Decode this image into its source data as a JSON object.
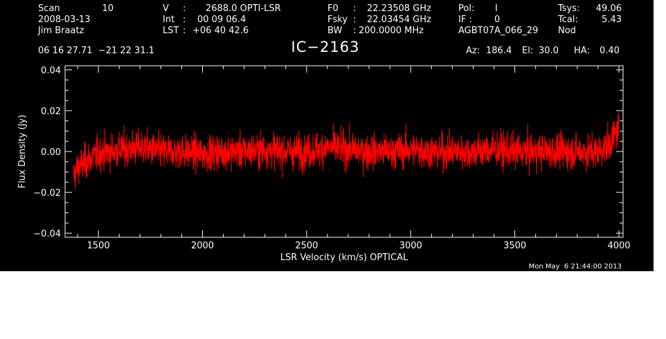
{
  "header": {
    "scan_label": "Scan",
    "scan_value": "10",
    "date": "2008-03-13",
    "observer": "Jim Braatz",
    "v_label": "V",
    "v_value": "2688.0 OPTI-LSR",
    "int_label": "Int",
    "int_value": "00 09 06.4",
    "lst_label": "LST",
    "lst_value": "+06 40 42.6",
    "f0_label": "F0",
    "f0_value": "22.23508 GHz",
    "fsky_label": "Fsky",
    "fsky_value": "22.03454 GHz",
    "bw_label": "BW",
    "bw_value": "200.0000 MHz",
    "pol_label": "Pol:",
    "pol_value": "I",
    "if_label": "IF :",
    "if_value": "0",
    "project": "AGBT07A_066_29",
    "tsys_label": "Tsys:",
    "tsys_value": "49.06",
    "tcal_label": "Tcal:",
    "tcal_value": "5.43",
    "mode": "Nod",
    "coords": "06 16 27.71  −21 22 31.1",
    "source": "IC−2163",
    "az_label": "Az:",
    "az_value": "186.4",
    "el_label": "El:",
    "el_value": "30.0",
    "ha_label": "HA:",
    "ha_value": "0.40",
    "timestamp": "Mon May  6 21:44:00 2013"
  },
  "colors": {
    "background": "#000000",
    "axes": "#ffffff",
    "trace": "#ff0000"
  },
  "chart_data": {
    "type": "line",
    "title": "IC−2163",
    "xlabel": "LSR Velocity (km/s) OPTICAL",
    "ylabel": "Flux Density (Jy)",
    "xlim": [
      1340,
      4020
    ],
    "ylim": [
      -0.042,
      0.042
    ],
    "xticks": [
      1500,
      2000,
      2500,
      3000,
      3500,
      4000
    ],
    "xtick_labels": [
      "1500",
      "2000",
      "2500",
      "3000",
      "3500",
      "4000"
    ],
    "yticks": [
      -0.04,
      -0.02,
      0.0,
      0.02,
      0.04
    ],
    "ytick_labels": [
      "−0.04",
      "−0.02",
      "0.00",
      "0.02",
      "0.04"
    ],
    "grid": false,
    "series": [
      {
        "color": "#ff0000",
        "x_range": [
          1380,
          4000
        ],
        "noise_rms_jy": 0.006,
        "x": [
          1380,
          1400,
          1450,
          1500,
          1600,
          1700,
          1800,
          1900,
          2000,
          2100,
          2200,
          2300,
          2400,
          2500,
          2600,
          2700,
          2800,
          2900,
          3000,
          3100,
          3200,
          3300,
          3400,
          3500,
          3600,
          3700,
          3800,
          3900,
          3950,
          3980,
          4000
        ],
        "y": [
          -0.012,
          -0.008,
          -0.004,
          -0.001,
          0.001,
          0.002,
          0.0,
          0.0,
          -0.001,
          0.0,
          0.0,
          0.001,
          0.0,
          0.0,
          0.002,
          0.001,
          0.0,
          0.0,
          0.001,
          0.0,
          0.0,
          0.0,
          0.001,
          0.0,
          0.0,
          0.0,
          0.0,
          0.0,
          0.003,
          0.008,
          0.012
        ]
      }
    ]
  }
}
